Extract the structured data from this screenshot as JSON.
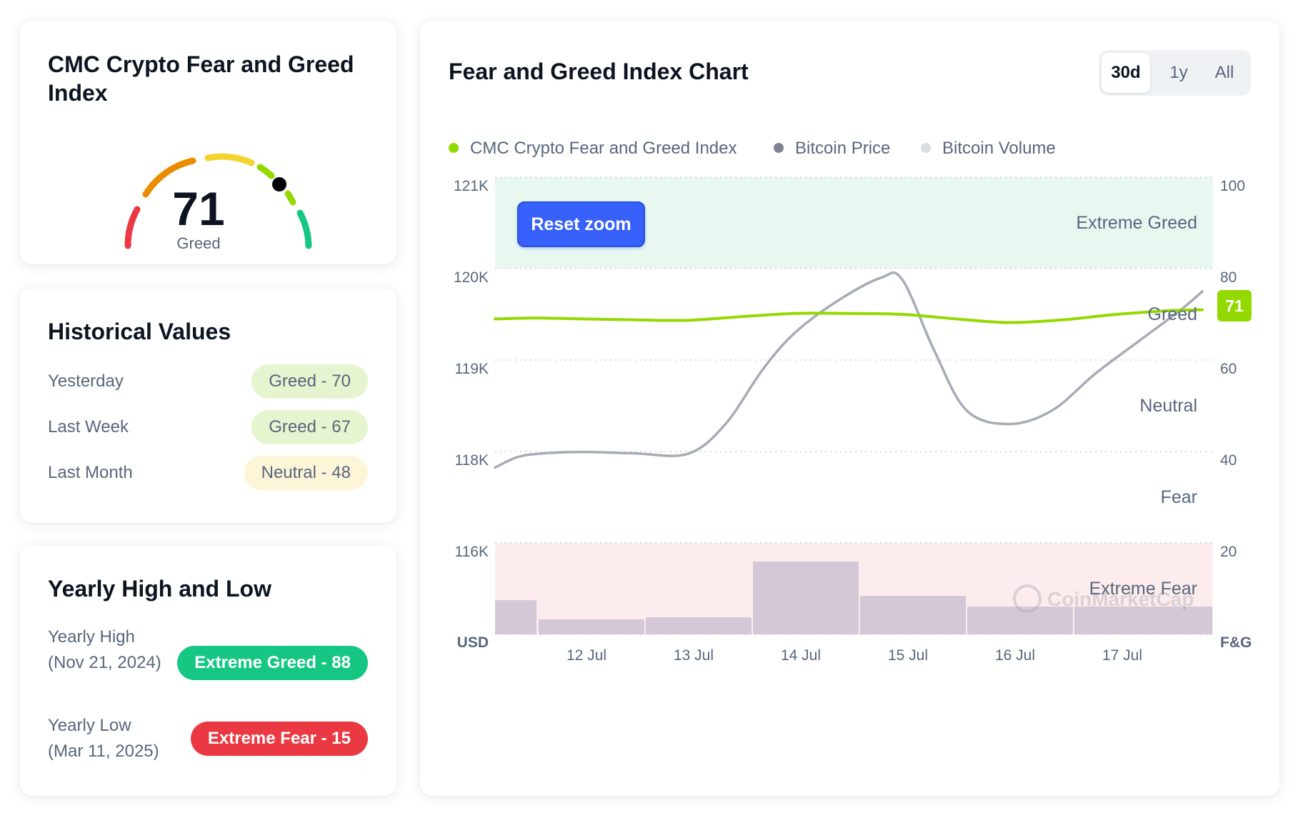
{
  "index_card": {
    "title": "CMC Crypto Fear and Greed Index",
    "value": "71",
    "label": "Greed",
    "gauge_fraction": 0.71
  },
  "historical": {
    "title": "Historical Values",
    "rows": [
      {
        "label": "Yesterday",
        "value": "Greed - 70"
      },
      {
        "label": "Last Week",
        "value": "Greed - 67"
      },
      {
        "label": "Last Month",
        "value": "Neutral - 48"
      }
    ]
  },
  "yearly": {
    "title": "Yearly High and Low",
    "high_label": "Yearly High",
    "high_date": "(Nov 21, 2024)",
    "high_value": "Extreme Greed - 88",
    "low_label": "Yearly Low",
    "low_date": "(Mar 11, 2025)",
    "low_value": "Extreme Fear - 15"
  },
  "chart_panel": {
    "title": "Fear and Greed Index Chart",
    "tabs": [
      "30d",
      "1y",
      "All"
    ],
    "active_tab": "30d",
    "reset_zoom_label": "Reset zoom",
    "watermark": "CoinMarketCap",
    "legend": [
      {
        "name": "CMC Crypto Fear and Greed Index",
        "color": "#93d900"
      },
      {
        "name": "Bitcoin Price",
        "color": "#7e8492"
      },
      {
        "name": "Bitcoin Volume",
        "color": "#d8dce3"
      }
    ],
    "current_badge": "71"
  },
  "chart_data": {
    "type": "line",
    "x_ticks": [
      "12 Jul",
      "13 Jul",
      "14 Jul",
      "15 Jul",
      "16 Jul",
      "17 Jul"
    ],
    "y_left": {
      "label": "USD",
      "ticks": [
        "121K",
        "120K",
        "119K",
        "118K",
        "116K"
      ]
    },
    "y_right": {
      "label": "F&G",
      "ticks": [
        "100",
        "80",
        "60",
        "40",
        "20"
      ],
      "ylim": [
        0,
        100
      ]
    },
    "zones": [
      "Extreme Greed",
      "Greed",
      "Neutral",
      "Fear",
      "Extreme Fear"
    ],
    "fear_greed_series": {
      "x": [
        11.2,
        11.6,
        12.0,
        12.5,
        13.0,
        13.5,
        14.0,
        14.5,
        15.0,
        15.5,
        16.0,
        16.5,
        17.0,
        17.5,
        17.8
      ],
      "values": [
        69,
        69.2,
        69,
        68.8,
        68.7,
        69.5,
        70.2,
        70.2,
        70,
        69,
        68.2,
        68.8,
        70,
        70.8,
        71
      ]
    },
    "bitcoin_price_series": {
      "x": [
        11.2,
        11.4,
        11.6,
        12.0,
        12.5,
        13.0,
        13.35,
        13.7,
        14.0,
        14.4,
        14.8,
        15.0,
        15.3,
        15.6,
        16.0,
        16.4,
        16.8,
        17.2,
        17.6,
        17.8
      ],
      "values": [
        117650,
        117870,
        117950,
        117990,
        117960,
        117950,
        118300,
        118900,
        119300,
        119650,
        119900,
        119880,
        119100,
        118450,
        118300,
        118450,
        118850,
        119200,
        119550,
        119750
      ]
    },
    "bitcoin_volume_series": {
      "x": [
        11.2,
        11.6,
        12.6,
        13.6,
        14.6,
        15.6,
        16.6
      ],
      "relative_values": [
        0.8,
        0.35,
        0.4,
        1.7,
        0.9,
        0.65,
        0.65
      ]
    }
  }
}
